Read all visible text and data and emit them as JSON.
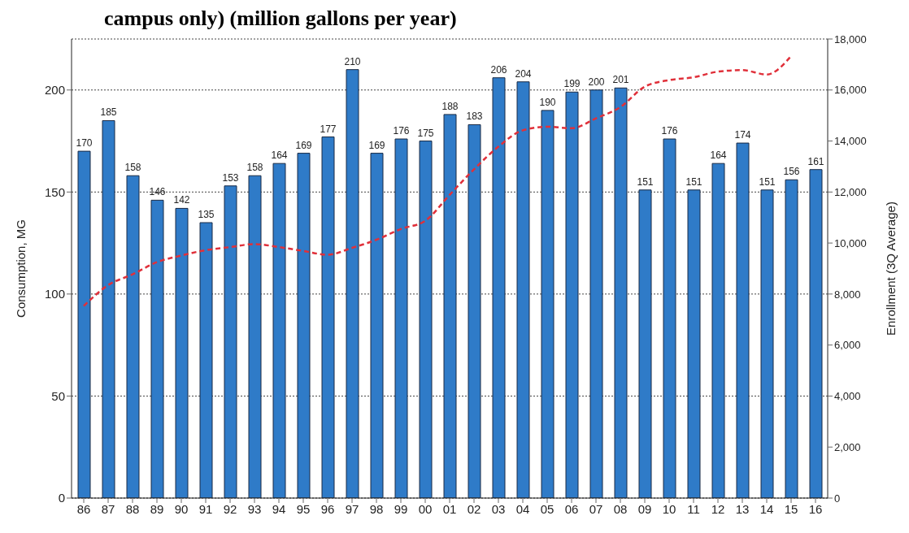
{
  "chart_data": {
    "type": "bar",
    "title": "campus only) (million gallons per year)",
    "ylabel": "Consumption, MG",
    "y2label": "Enrollment  (3Q Average)",
    "categories": [
      "86",
      "87",
      "88",
      "89",
      "90",
      "91",
      "92",
      "93",
      "94",
      "95",
      "96",
      "97",
      "98",
      "99",
      "00",
      "01",
      "02",
      "03",
      "04",
      "05",
      "06",
      "07",
      "08",
      "09",
      "10",
      "11",
      "12",
      "13",
      "14",
      "15",
      "16"
    ],
    "series": [
      {
        "color": "#2f7bc8",
        "values": [
          170,
          185,
          158,
          146,
          142,
          135,
          153,
          158,
          164,
          169,
          177,
          210,
          169,
          176,
          175,
          188,
          183,
          206,
          204,
          190,
          199,
          200,
          201,
          151,
          176,
          151,
          164,
          174,
          151,
          156,
          161
        ],
        "value_labels": [
          "170",
          "185",
          "158",
          "146",
          "142",
          "135",
          "153",
          "158",
          "164",
          "169",
          "177",
          "210",
          "169",
          "176",
          "175",
          "188",
          "183",
          "206",
          "204",
          "190",
          "199",
          "200",
          "201",
          "151",
          "176",
          "151",
          "164",
          "174",
          "151",
          "156",
          "161"
        ]
      },
      {
        "type": "line",
        "axis": "y2",
        "color": "#e0303a",
        "line_style": "dashed",
        "marker": "none",
        "values": [
          7530,
          8350,
          8770,
          9250,
          9510,
          9720,
          9840,
          9960,
          9840,
          9690,
          9540,
          9810,
          10130,
          10550,
          10870,
          11890,
          12890,
          13780,
          14420,
          14560,
          14500,
          14890,
          15330,
          16130,
          16390,
          16500,
          16720,
          16780,
          16610,
          17330,
          null
        ]
      }
    ],
    "ylim": [
      0,
      225
    ],
    "yticks": [
      0,
      50,
      100,
      150,
      200
    ],
    "y2lim": [
      0,
      18000
    ],
    "y2ticks": [
      0,
      {
        "value": 2000,
        "label": "2,000"
      },
      {
        "value": 4000,
        "label": "4,000"
      },
      {
        "value": 6000,
        "label": "6,000"
      },
      {
        "value": 8000,
        "label": "8,000"
      },
      {
        "value": 10000,
        "label": "10,000"
      },
      {
        "value": 12000,
        "label": "12,000"
      },
      {
        "value": 14000,
        "label": "14,000"
      },
      {
        "value": 16000,
        "label": "16,000"
      },
      {
        "value": 18000,
        "label": "18,000"
      }
    ],
    "grid": "y",
    "legend": false
  }
}
